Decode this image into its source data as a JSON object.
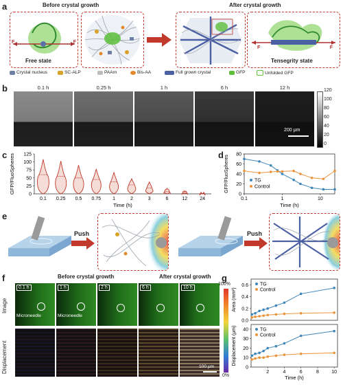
{
  "panels": [
    "a",
    "b",
    "c",
    "d",
    "e",
    "f",
    "g"
  ],
  "panel_a": {
    "header_before": "Before crystal growth",
    "header_after": "After crystal growth",
    "free_state": "Free state",
    "tensegrity_state": "Tensegrity state",
    "force": "F",
    "legend": [
      {
        "label": "Crystal nucleus",
        "color": "#6f7fa6"
      },
      {
        "label": "SC-ALP",
        "color": "#d8a32a"
      },
      {
        "label": "PAAm",
        "color": "#bdbdbd"
      },
      {
        "label": "Bis-AA",
        "color": "#e08a2c"
      },
      {
        "label": "Full grown crystal",
        "color": "#4b5fa3"
      },
      {
        "label": "GFP",
        "color": "#5bbf3a"
      },
      {
        "label": "Unfolded GFP",
        "color": "#5bbf3a"
      }
    ]
  },
  "panel_b": {
    "times": [
      "0.1 h",
      "0.25 h",
      "1 h",
      "6 h",
      "12 h"
    ],
    "colorbar_ticks": [
      "120",
      "100",
      "80",
      "60",
      "40",
      "20",
      "0"
    ],
    "scalebar": "200 μm"
  },
  "panel_f": {
    "header_before": "Before crystal growth",
    "header_after": "After crystal growth",
    "row_image": "Image",
    "row_displacement": "Displacement",
    "times": [
      "0.1 h",
      "1 h",
      "2 h",
      "6 h",
      "10 h"
    ],
    "microneedle": "Microneedle",
    "colorbar_top": "100%",
    "colorbar_bottom": "0%",
    "scalebar": "100 μm"
  },
  "panel_e": {
    "push": "Push"
  },
  "chart_data": [
    {
      "id": "c",
      "type": "violin",
      "ylabel": "GFP/FluoSpheres",
      "xlabel": "Time (h)",
      "categories": [
        "0.1",
        "0.25",
        "0.5",
        "0.75",
        "1",
        "2",
        "3",
        "6",
        "12",
        "24"
      ],
      "yticks": [
        "0",
        "25",
        "50",
        "75",
        "100",
        "125"
      ],
      "ylim": [
        0,
        125
      ],
      "max": [
        108,
        103,
        90,
        78,
        68,
        48,
        38,
        18,
        10,
        2
      ],
      "median": [
        60,
        55,
        50,
        45,
        38,
        28,
        18,
        8,
        3,
        0.5
      ],
      "color": "#c0392b"
    },
    {
      "id": "d",
      "type": "line",
      "ylabel": "GFP/FluoSpheres",
      "xlabel": "Time (h)",
      "xscale": "log",
      "xticks": [
        "0.1",
        "1",
        "10"
      ],
      "yticks": [
        "0",
        "20",
        "40",
        "60",
        "80"
      ],
      "ylim": [
        0,
        80
      ],
      "series": [
        {
          "name": "TG",
          "color": "#3f86b8",
          "x": [
            0.1,
            0.25,
            0.5,
            0.75,
            1,
            2,
            3,
            6,
            12,
            24
          ],
          "y": [
            70,
            65,
            57,
            47,
            40,
            28,
            20,
            12,
            9,
            9
          ]
        },
        {
          "name": "Control",
          "color": "#e8943a",
          "x": [
            0.1,
            0.25,
            0.5,
            0.75,
            1,
            2,
            3,
            6,
            12,
            24
          ],
          "y": [
            46,
            42,
            44,
            45,
            45,
            46,
            40,
            32,
            30,
            46
          ]
        }
      ]
    },
    {
      "id": "g_top",
      "type": "line",
      "ylabel": "Area (mm²)",
      "yticks": [
        "0.0",
        "0.2",
        "0.4",
        "0.6"
      ],
      "ylim": [
        0,
        0.7
      ],
      "series": [
        {
          "name": "TG",
          "color": "#3f86b8",
          "x": [
            0.1,
            0.5,
            1,
            1.5,
            2,
            3,
            4,
            6,
            10
          ],
          "y": [
            0.1,
            0.12,
            0.16,
            0.18,
            0.2,
            0.25,
            0.3,
            0.45,
            0.55
          ]
        },
        {
          "name": "Control",
          "color": "#e8943a",
          "x": [
            0.1,
            0.5,
            1,
            1.5,
            2,
            3,
            4,
            6,
            10
          ],
          "y": [
            0.05,
            0.06,
            0.07,
            0.08,
            0.09,
            0.1,
            0.11,
            0.12,
            0.13
          ]
        }
      ]
    },
    {
      "id": "g_bottom",
      "type": "line",
      "ylabel": "Displacement (μm)",
      "xlabel": "Time (h)",
      "xticks": [
        "2",
        "4",
        "6",
        "8",
        "10"
      ],
      "yticks": [
        "0",
        "10",
        "20",
        "30",
        "40"
      ],
      "ylim": [
        0,
        45
      ],
      "series": [
        {
          "name": "TG",
          "color": "#3f86b8",
          "x": [
            0.1,
            0.5,
            1,
            1.5,
            2,
            3,
            4,
            6,
            10
          ],
          "y": [
            12,
            14,
            15,
            17,
            20,
            22,
            25,
            33,
            38
          ]
        },
        {
          "name": "Control",
          "color": "#e8943a",
          "x": [
            0.1,
            0.5,
            1,
            1.5,
            2,
            3,
            4,
            6,
            10
          ],
          "y": [
            8,
            9,
            10,
            10,
            11,
            12,
            13,
            14,
            15
          ]
        }
      ]
    }
  ]
}
